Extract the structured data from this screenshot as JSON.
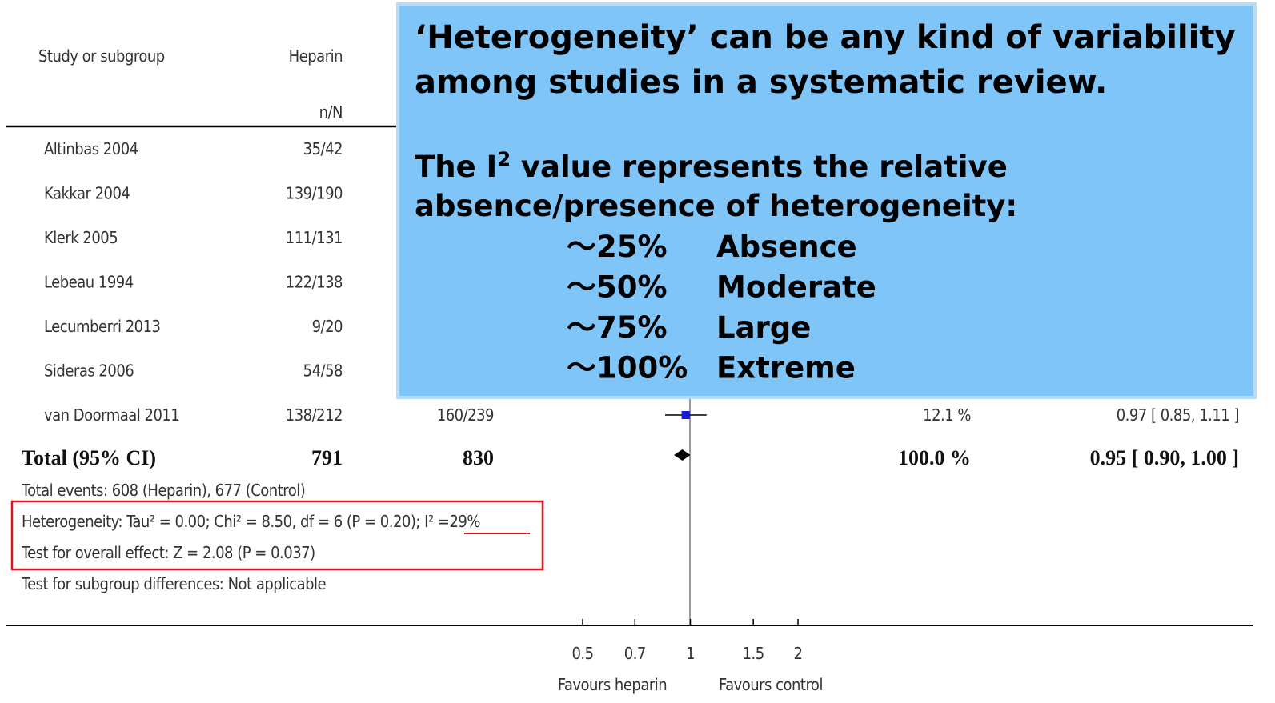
{
  "forest": {
    "headers": {
      "study": "Study or subgroup",
      "heparin": "Heparin",
      "heparin_unit": "n/N"
    },
    "rows": [
      {
        "study": "Altinbas 2004",
        "heparin": "35/42"
      },
      {
        "study": "Kakkar 2004",
        "heparin": "139/190"
      },
      {
        "study": "Klerk 2005",
        "heparin": "111/131"
      },
      {
        "study": "Lebeau 1994",
        "heparin": "122/138"
      },
      {
        "study": "Lecumberri 2013",
        "heparin": "9/20"
      },
      {
        "study": "Sideras 2006",
        "heparin": "54/58"
      },
      {
        "study": "van Doormaal 2011",
        "heparin": "138/212",
        "control": "160/239",
        "weight": "12.1 %",
        "effect": {
          "estimate": 0.97,
          "lower": 0.85,
          "upper": 1.11,
          "label": "0.97 [ 0.85, 1.11 ]"
        }
      }
    ],
    "total": {
      "study": "Total (95% CI)",
      "heparin": "791",
      "control": "830",
      "weight": "100.0 %",
      "effect": {
        "estimate": 0.95,
        "lower": 0.9,
        "upper": 1.0,
        "label": "0.95 [ 0.90, 1.00 ]"
      }
    },
    "footnotes": {
      "events": "Total events: 608 (Heparin), 677 (Control)",
      "heterogeneity": "Heterogeneity: Tau² = 0.00; Chi² = 8.50, df = 6 (P = 0.20); ",
      "i2": "I² =29%",
      "overall": "Test for overall effect: Z = 2.08 (P = 0.037)",
      "subgroup": "Test for subgroup differences: Not applicable"
    },
    "axis": {
      "log": true,
      "xlim": [
        0.5,
        2
      ],
      "xticks": [
        0.5,
        0.7,
        {
          "value": 1,
          "label": "1"
        },
        1.5,
        2
      ],
      "left_label": "Favours heparin",
      "right_label": "Favours control"
    }
  },
  "callout": {
    "title": [
      "‘Heterogeneity’ can be any kind of variability",
      "among studies in a systematic review."
    ],
    "intro_pre": "The I",
    "intro_sup": "2",
    "intro_post": " value represents the relative",
    "intro_line2": "absence/presence  of heterogeneity:",
    "scale": [
      {
        "level": "～25%",
        "label": "Absence"
      },
      {
        "level": "～50%",
        "label": "Moderate"
      },
      {
        "level": "～75%",
        "label": "Large"
      },
      {
        "level": "～100%",
        "label": "Extreme"
      }
    ]
  }
}
